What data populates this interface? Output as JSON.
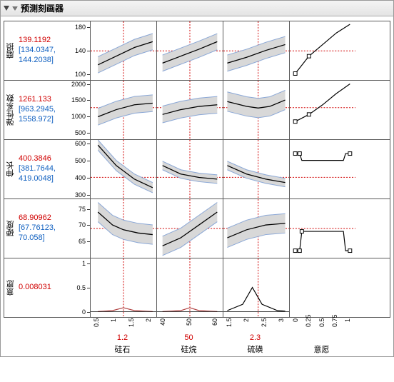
{
  "window": {
    "title": "预测刻画器"
  },
  "responses": [
    {
      "label": "磨损",
      "value": "139.1192",
      "ci": "[134.0347, 144.2038]",
      "ylim": [
        90,
        190
      ],
      "yticks": [
        100,
        140,
        180
      ],
      "ref": 139.12
    },
    {
      "label": "弹性系数",
      "value": "1261.133",
      "ci": "[963.2945, 1558.972]",
      "ylim": [
        300,
        2100
      ],
      "yticks": [
        500,
        1000,
        1500,
        2000
      ],
      "ref": 1261.1
    },
    {
      "label": "伸长",
      "value": "400.3846",
      "ci": "[381.7644, 419.0048]",
      "ylim": [
        280,
        620
      ],
      "yticks": [
        300,
        400,
        500,
        600
      ],
      "ref": 400.4
    },
    {
      "label": "硬度",
      "value": "68.90962",
      "ci": "[67.76123, 70.058]",
      "ylim": [
        60,
        78
      ],
      "yticks": [
        65,
        70,
        75
      ],
      "ref": 68.91
    },
    {
      "label": "意愿",
      "value": "0.008031",
      "ci": "",
      "ylim": [
        -0.1,
        1.1
      ],
      "yticks": [
        0,
        0.5,
        1
      ],
      "ref": null
    }
  ],
  "factors": [
    {
      "label": "硅石",
      "xlim": [
        0.3,
        2.1
      ],
      "xticks": [
        "0.5",
        "1",
        "1.5",
        "2"
      ],
      "current": "1.2",
      "ref": 1.2
    },
    {
      "label": "硅烷",
      "xlim": [
        32,
        68
      ],
      "xticks": [
        "40",
        "50",
        "60"
      ],
      "current": "50",
      "ref": 50
    },
    {
      "label": "硫磺",
      "xlim": [
        1.4,
        3.1
      ],
      "xticks": [
        "1.5",
        "2",
        "2.5",
        "3"
      ],
      "current": "2.3",
      "ref": 2.3
    },
    {
      "label": "意愿",
      "xlim": [
        -0.1,
        1.1
      ],
      "xticks": [
        "0",
        "0.25",
        "0.5",
        "0.75",
        "1"
      ],
      "current": "",
      "ref": null
    }
  ],
  "curves": [
    [
      {
        "pts": [
          [
            0.5,
            115
          ],
          [
            1.0,
            130
          ],
          [
            1.5,
            145
          ],
          [
            2.0,
            155
          ]
        ],
        "band": 14,
        "type": "fit"
      },
      {
        "pts": [
          [
            35,
            118
          ],
          [
            45,
            130
          ],
          [
            55,
            142
          ],
          [
            65,
            155
          ]
        ],
        "band": 14,
        "type": "fit"
      },
      {
        "pts": [
          [
            1.5,
            118
          ],
          [
            2.0,
            128
          ],
          [
            2.5,
            140
          ],
          [
            3.0,
            150
          ]
        ],
        "band": 14,
        "type": "fit"
      },
      {
        "pts": [
          [
            0,
            100
          ],
          [
            0.25,
            130
          ],
          [
            0.5,
            150
          ],
          [
            0.75,
            170
          ],
          [
            1,
            185
          ]
        ],
        "type": "desir",
        "markers": [
          [
            0,
            100
          ],
          [
            0.25,
            130
          ]
        ]
      }
    ],
    [
      {
        "pts": [
          [
            0.5,
            980
          ],
          [
            1.0,
            1200
          ],
          [
            1.5,
            1350
          ],
          [
            2.0,
            1400
          ]
        ],
        "band": 260,
        "type": "fit"
      },
      {
        "pts": [
          [
            35,
            1050
          ],
          [
            45,
            1200
          ],
          [
            55,
            1300
          ],
          [
            65,
            1350
          ]
        ],
        "band": 260,
        "type": "fit"
      },
      {
        "pts": [
          [
            1.5,
            1450
          ],
          [
            2.0,
            1300
          ],
          [
            2.3,
            1250
          ],
          [
            2.6,
            1300
          ],
          [
            3.0,
            1500
          ]
        ],
        "band": 300,
        "type": "fit"
      },
      {
        "pts": [
          [
            0,
            830
          ],
          [
            0.25,
            1050
          ],
          [
            0.5,
            1350
          ],
          [
            0.75,
            1700
          ],
          [
            1,
            2000
          ]
        ],
        "type": "desir",
        "markers": [
          [
            0,
            830
          ],
          [
            0.25,
            1050
          ]
        ]
      }
    ],
    [
      {
        "pts": [
          [
            0.5,
            590
          ],
          [
            1.0,
            470
          ],
          [
            1.5,
            390
          ],
          [
            2.0,
            340
          ]
        ],
        "band": 30,
        "type": "fit"
      },
      {
        "pts": [
          [
            35,
            470
          ],
          [
            45,
            420
          ],
          [
            55,
            400
          ],
          [
            65,
            390
          ]
        ],
        "band": 25,
        "type": "fit"
      },
      {
        "pts": [
          [
            1.5,
            470
          ],
          [
            2.0,
            420
          ],
          [
            2.5,
            390
          ],
          [
            3.0,
            370
          ]
        ],
        "band": 25,
        "type": "fit"
      },
      {
        "pts": [
          [
            0,
            540
          ],
          [
            0.08,
            540
          ],
          [
            0.12,
            500
          ],
          [
            0.88,
            500
          ],
          [
            0.92,
            540
          ],
          [
            1,
            540
          ]
        ],
        "type": "desir_peak",
        "markers": [
          [
            0,
            540
          ],
          [
            0.08,
            540
          ],
          [
            1,
            540
          ]
        ]
      }
    ],
    [
      {
        "pts": [
          [
            0.5,
            74
          ],
          [
            0.9,
            70
          ],
          [
            1.2,
            68.5
          ],
          [
            1.6,
            67.5
          ],
          [
            2.0,
            67
          ]
        ],
        "band": 3,
        "type": "fit"
      },
      {
        "pts": [
          [
            35,
            63.5
          ],
          [
            45,
            66
          ],
          [
            55,
            70
          ],
          [
            65,
            74
          ]
        ],
        "band": 3,
        "type": "fit"
      },
      {
        "pts": [
          [
            1.5,
            66
          ],
          [
            2.0,
            68.5
          ],
          [
            2.5,
            70
          ],
          [
            3.0,
            70.5
          ]
        ],
        "band": 3,
        "type": "fit"
      },
      {
        "pts": [
          [
            0,
            62
          ],
          [
            0.08,
            62
          ],
          [
            0.12,
            68
          ],
          [
            0.88,
            68
          ],
          [
            0.92,
            62
          ],
          [
            1,
            62
          ]
        ],
        "type": "desir_peak",
        "markers": [
          [
            0,
            62
          ],
          [
            0.08,
            62
          ],
          [
            0.12,
            68
          ],
          [
            1,
            62
          ]
        ]
      }
    ],
    [
      {
        "pts": [
          [
            0.5,
            0
          ],
          [
            0.9,
            0.02
          ],
          [
            1.2,
            0.08
          ],
          [
            1.5,
            0.02
          ],
          [
            2.0,
            0
          ]
        ],
        "type": "line_red"
      },
      {
        "pts": [
          [
            35,
            0
          ],
          [
            45,
            0.02
          ],
          [
            50,
            0.08
          ],
          [
            55,
            0.02
          ],
          [
            65,
            0
          ]
        ],
        "type": "line_red"
      },
      {
        "pts": [
          [
            1.5,
            0.02
          ],
          [
            1.9,
            0.15
          ],
          [
            2.15,
            0.5
          ],
          [
            2.4,
            0.15
          ],
          [
            2.8,
            0.02
          ],
          [
            3.0,
            0.01
          ]
        ],
        "type": "line"
      },
      {
        "pts": [
          [
            0,
            0
          ],
          [
            1,
            1
          ]
        ],
        "type": "empty"
      }
    ]
  ],
  "colors": {
    "band_fill": "#d8d8d8",
    "band_edge": "#8aa7d6",
    "fit_line": "#000000",
    "ref_line": "#d00000",
    "grid_border": "#5a5a5a",
    "marker": "#000000"
  }
}
